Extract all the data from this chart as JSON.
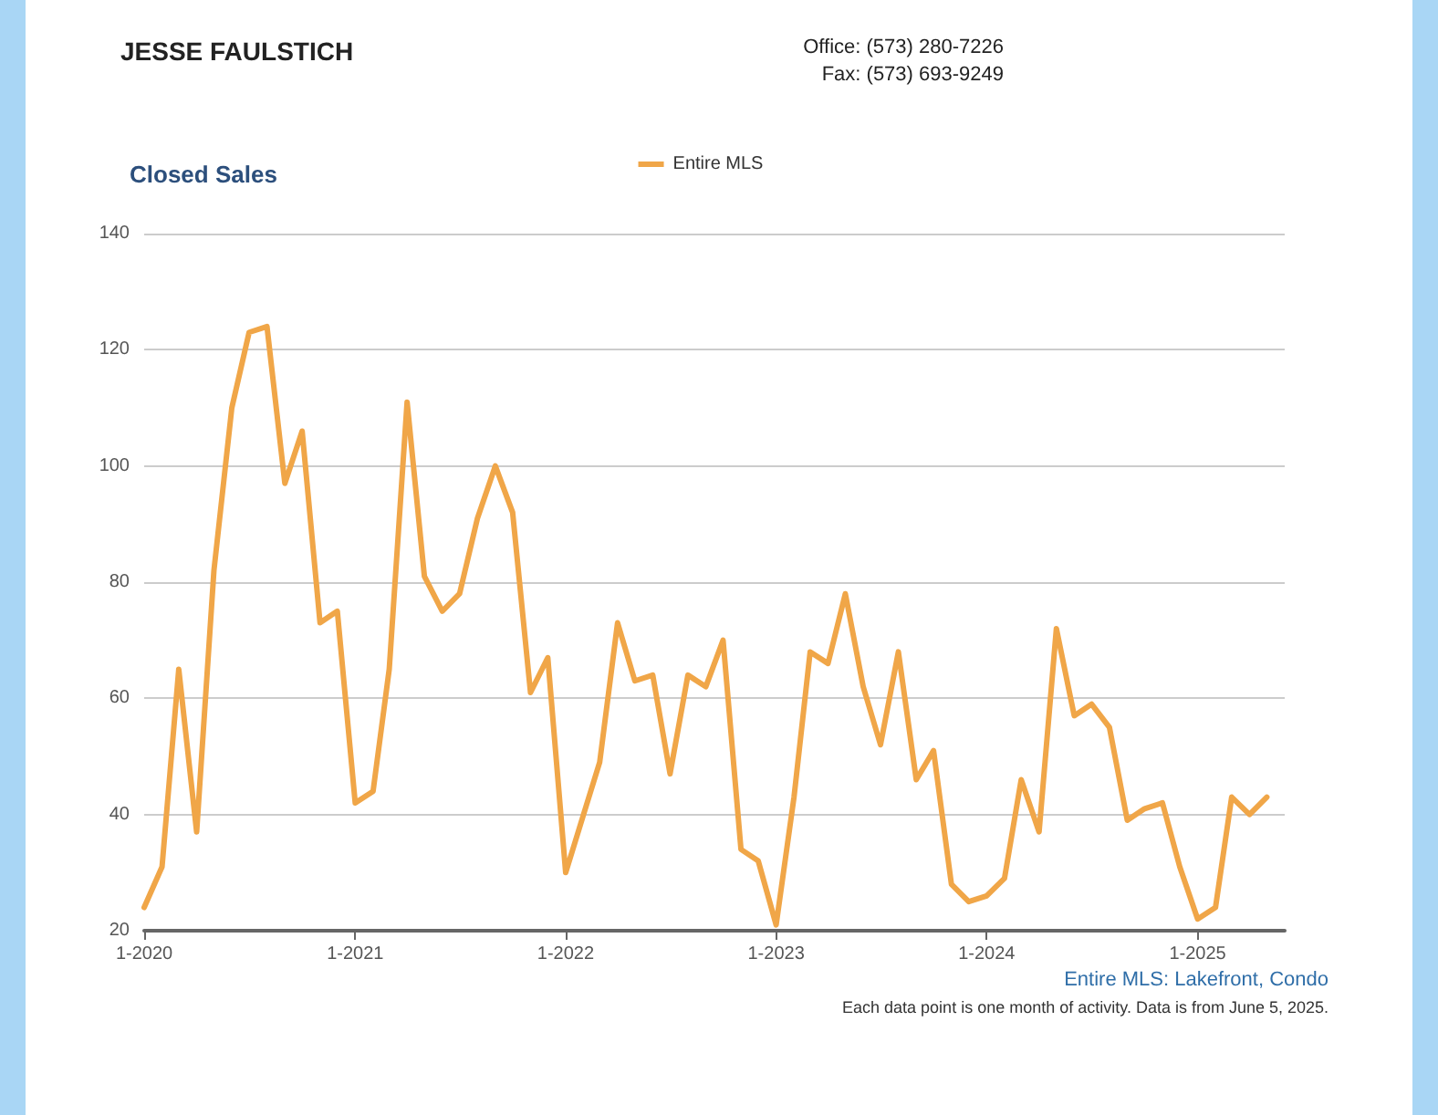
{
  "chart_data": {
    "type": "line",
    "title": "Closed Sales",
    "annotations": [
      "JESSE FAULSTICH",
      "Office: (573) 280-7226",
      "Fax: (573) 693-9249",
      "Entire MLS: Lakefront, Condo",
      "Each data point is one month of activity. Data is from June 5, 2025."
    ],
    "x": [
      "2020-01",
      "2020-02",
      "2020-03",
      "2020-04",
      "2020-05",
      "2020-06",
      "2020-07",
      "2020-08",
      "2020-09",
      "2020-10",
      "2020-11",
      "2020-12",
      "2021-01",
      "2021-02",
      "2021-03",
      "2021-04",
      "2021-05",
      "2021-06",
      "2021-07",
      "2021-08",
      "2021-09",
      "2021-10",
      "2021-11",
      "2021-12",
      "2022-01",
      "2022-02",
      "2022-03",
      "2022-04",
      "2022-05",
      "2022-06",
      "2022-07",
      "2022-08",
      "2022-09",
      "2022-10",
      "2022-11",
      "2022-12",
      "2023-01",
      "2023-02",
      "2023-03",
      "2023-04",
      "2023-05",
      "2023-06",
      "2023-07",
      "2023-08",
      "2023-09",
      "2023-10",
      "2023-11",
      "2023-12",
      "2024-01",
      "2024-02",
      "2024-03",
      "2024-04",
      "2024-05",
      "2024-06",
      "2024-07",
      "2024-08",
      "2024-09",
      "2024-10",
      "2024-11",
      "2024-12",
      "2025-01",
      "2025-02",
      "2025-03",
      "2025-04",
      "2025-05"
    ],
    "series": [
      {
        "name": "Entire MLS",
        "color": "#f0a648",
        "values": [
          24,
          31,
          65,
          37,
          82,
          110,
          123,
          124,
          97,
          106,
          73,
          75,
          42,
          44,
          65,
          111,
          81,
          75,
          78,
          91,
          100,
          92,
          61,
          67,
          30,
          40,
          49,
          73,
          63,
          64,
          47,
          64,
          62,
          70,
          34,
          32,
          21,
          43,
          68,
          66,
          78,
          62,
          52,
          68,
          46,
          51,
          28,
          25,
          26,
          29,
          46,
          37,
          72,
          57,
          59,
          55,
          39,
          41,
          42,
          31,
          22,
          24,
          43,
          40,
          43
        ]
      }
    ],
    "xlim": [
      "2020-01",
      "2025-06"
    ],
    "xticks": [
      {
        "value": "2020-01",
        "label": "1-2020"
      },
      {
        "value": "2021-01",
        "label": "1-2021"
      },
      {
        "value": "2022-01",
        "label": "1-2022"
      },
      {
        "value": "2023-01",
        "label": "1-2023"
      },
      {
        "value": "2024-01",
        "label": "1-2024"
      },
      {
        "value": "2025-01",
        "label": "1-2025"
      }
    ],
    "ylim": [
      20,
      140
    ],
    "yticks": [
      20,
      40,
      60,
      80,
      100,
      120,
      140
    ],
    "grid": "y",
    "legend": "top",
    "marker": "none",
    "line_style": "solid"
  }
}
